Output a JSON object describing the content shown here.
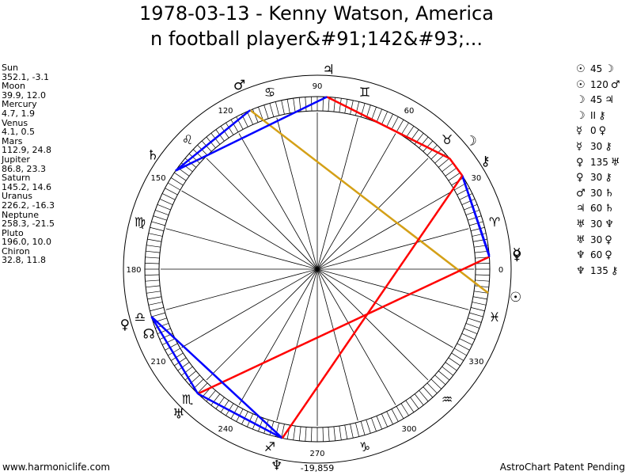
{
  "title": {
    "line1": "1978-03-13 - Kenny Watson, America",
    "line2": "n football player&#91;142&#93;..."
  },
  "planets": [
    {
      "name": "Sun",
      "coords": "352.1, -3.1",
      "glyph": "☉"
    },
    {
      "name": "Moon",
      "coords": "39.9, 12.0",
      "glyph": "☽"
    },
    {
      "name": "Mercury",
      "coords": "4.7, 1.9",
      "glyph": "☿"
    },
    {
      "name": "Venus",
      "coords": "4.1, 0.5",
      "glyph": "♀"
    },
    {
      "name": "Mars",
      "coords": "112.9, 24.8",
      "glyph": "♂"
    },
    {
      "name": "Jupiter",
      "coords": "86.8, 23.3",
      "glyph": "♃"
    },
    {
      "name": "Saturn",
      "coords": "145.2, 14.6",
      "glyph": "♄"
    },
    {
      "name": "Uranus",
      "coords": "226.2, -16.3",
      "glyph": "♅"
    },
    {
      "name": "Neptune",
      "coords": "258.3, -21.5",
      "glyph": "♆"
    },
    {
      "name": "Pluto",
      "coords": "196.0, 10.0",
      "glyph": "♀"
    },
    {
      "name": "Chiron",
      "coords": "32.8, 11.8",
      "glyph": "⚷"
    }
  ],
  "node": {
    "glyph": "☊",
    "longitude": 201
  },
  "aspects": [
    {
      "p1": "☉",
      "angle": "45",
      "p2": "☽"
    },
    {
      "p1": "☉",
      "angle": "120",
      "p2": "♂"
    },
    {
      "p1": "☽",
      "angle": "45",
      "p2": "♃"
    },
    {
      "p1": "☽",
      "angle": "II",
      "p2": "⚷"
    },
    {
      "p1": "☿",
      "angle": "0",
      "p2": "♀"
    },
    {
      "p1": "☿",
      "angle": "30",
      "p2": "⚷"
    },
    {
      "p1": "♀",
      "angle": "135",
      "p2": "♅"
    },
    {
      "p1": "♀",
      "angle": "30",
      "p2": "⚷"
    },
    {
      "p1": "♂",
      "angle": "30",
      "p2": "♄"
    },
    {
      "p1": "♃",
      "angle": "60",
      "p2": "♄"
    },
    {
      "p1": "♅",
      "angle": "30",
      "p2": "♆"
    },
    {
      "p1": "♅",
      "angle": "30",
      "p2": "♀"
    },
    {
      "p1": "♆",
      "angle": "60",
      "p2": "♀"
    },
    {
      "p1": "♆",
      "angle": "135",
      "p2": "⚷"
    }
  ],
  "wheel": {
    "degree_labels": [
      "0",
      "30",
      "60",
      "90",
      "120",
      "150",
      "180",
      "210",
      "240",
      "270",
      "300",
      "330"
    ],
    "bottom_label": "-19,859",
    "signs": [
      {
        "glyph": "♈",
        "longitude": 15
      },
      {
        "glyph": "♉",
        "longitude": 45
      },
      {
        "glyph": "♊",
        "longitude": 75
      },
      {
        "glyph": "♋",
        "longitude": 105
      },
      {
        "glyph": "♌",
        "longitude": 135
      },
      {
        "glyph": "♍",
        "longitude": 165
      },
      {
        "glyph": "♎",
        "longitude": 195
      },
      {
        "glyph": "♏",
        "longitude": 225
      },
      {
        "glyph": "♐",
        "longitude": 255
      },
      {
        "glyph": "♑",
        "longitude": 285
      },
      {
        "glyph": "♒",
        "longitude": 315
      },
      {
        "glyph": "♓",
        "longitude": 345
      }
    ]
  },
  "aspect_lines": [
    {
      "from": "Sun",
      "to": "Mars",
      "color": "#d4a017"
    },
    {
      "from": "Moon",
      "to": "Jupiter",
      "color": "#ff0000"
    },
    {
      "from": "Moon",
      "to": "Chiron",
      "color": "#ff0000"
    },
    {
      "from": "Mercury",
      "to": "Chiron",
      "color": "#0000ff"
    },
    {
      "from": "Venus",
      "to": "Uranus",
      "color": "#ff0000"
    },
    {
      "from": "Venus",
      "to": "Chiron",
      "color": "#0000ff"
    },
    {
      "from": "Mars",
      "to": "Saturn",
      "color": "#0000ff"
    },
    {
      "from": "Jupiter",
      "to": "Saturn",
      "color": "#0000ff"
    },
    {
      "from": "Uranus",
      "to": "Neptune",
      "color": "#0000ff"
    },
    {
      "from": "Uranus",
      "to": "Pluto",
      "color": "#0000ff"
    },
    {
      "from": "Neptune",
      "to": "Pluto",
      "color": "#0000ff"
    },
    {
      "from": "Neptune",
      "to": "Chiron",
      "color": "#ff0000"
    }
  ],
  "footer": {
    "left": "www.harmoniclife.com",
    "right": "AstroChart Patent Pending"
  }
}
